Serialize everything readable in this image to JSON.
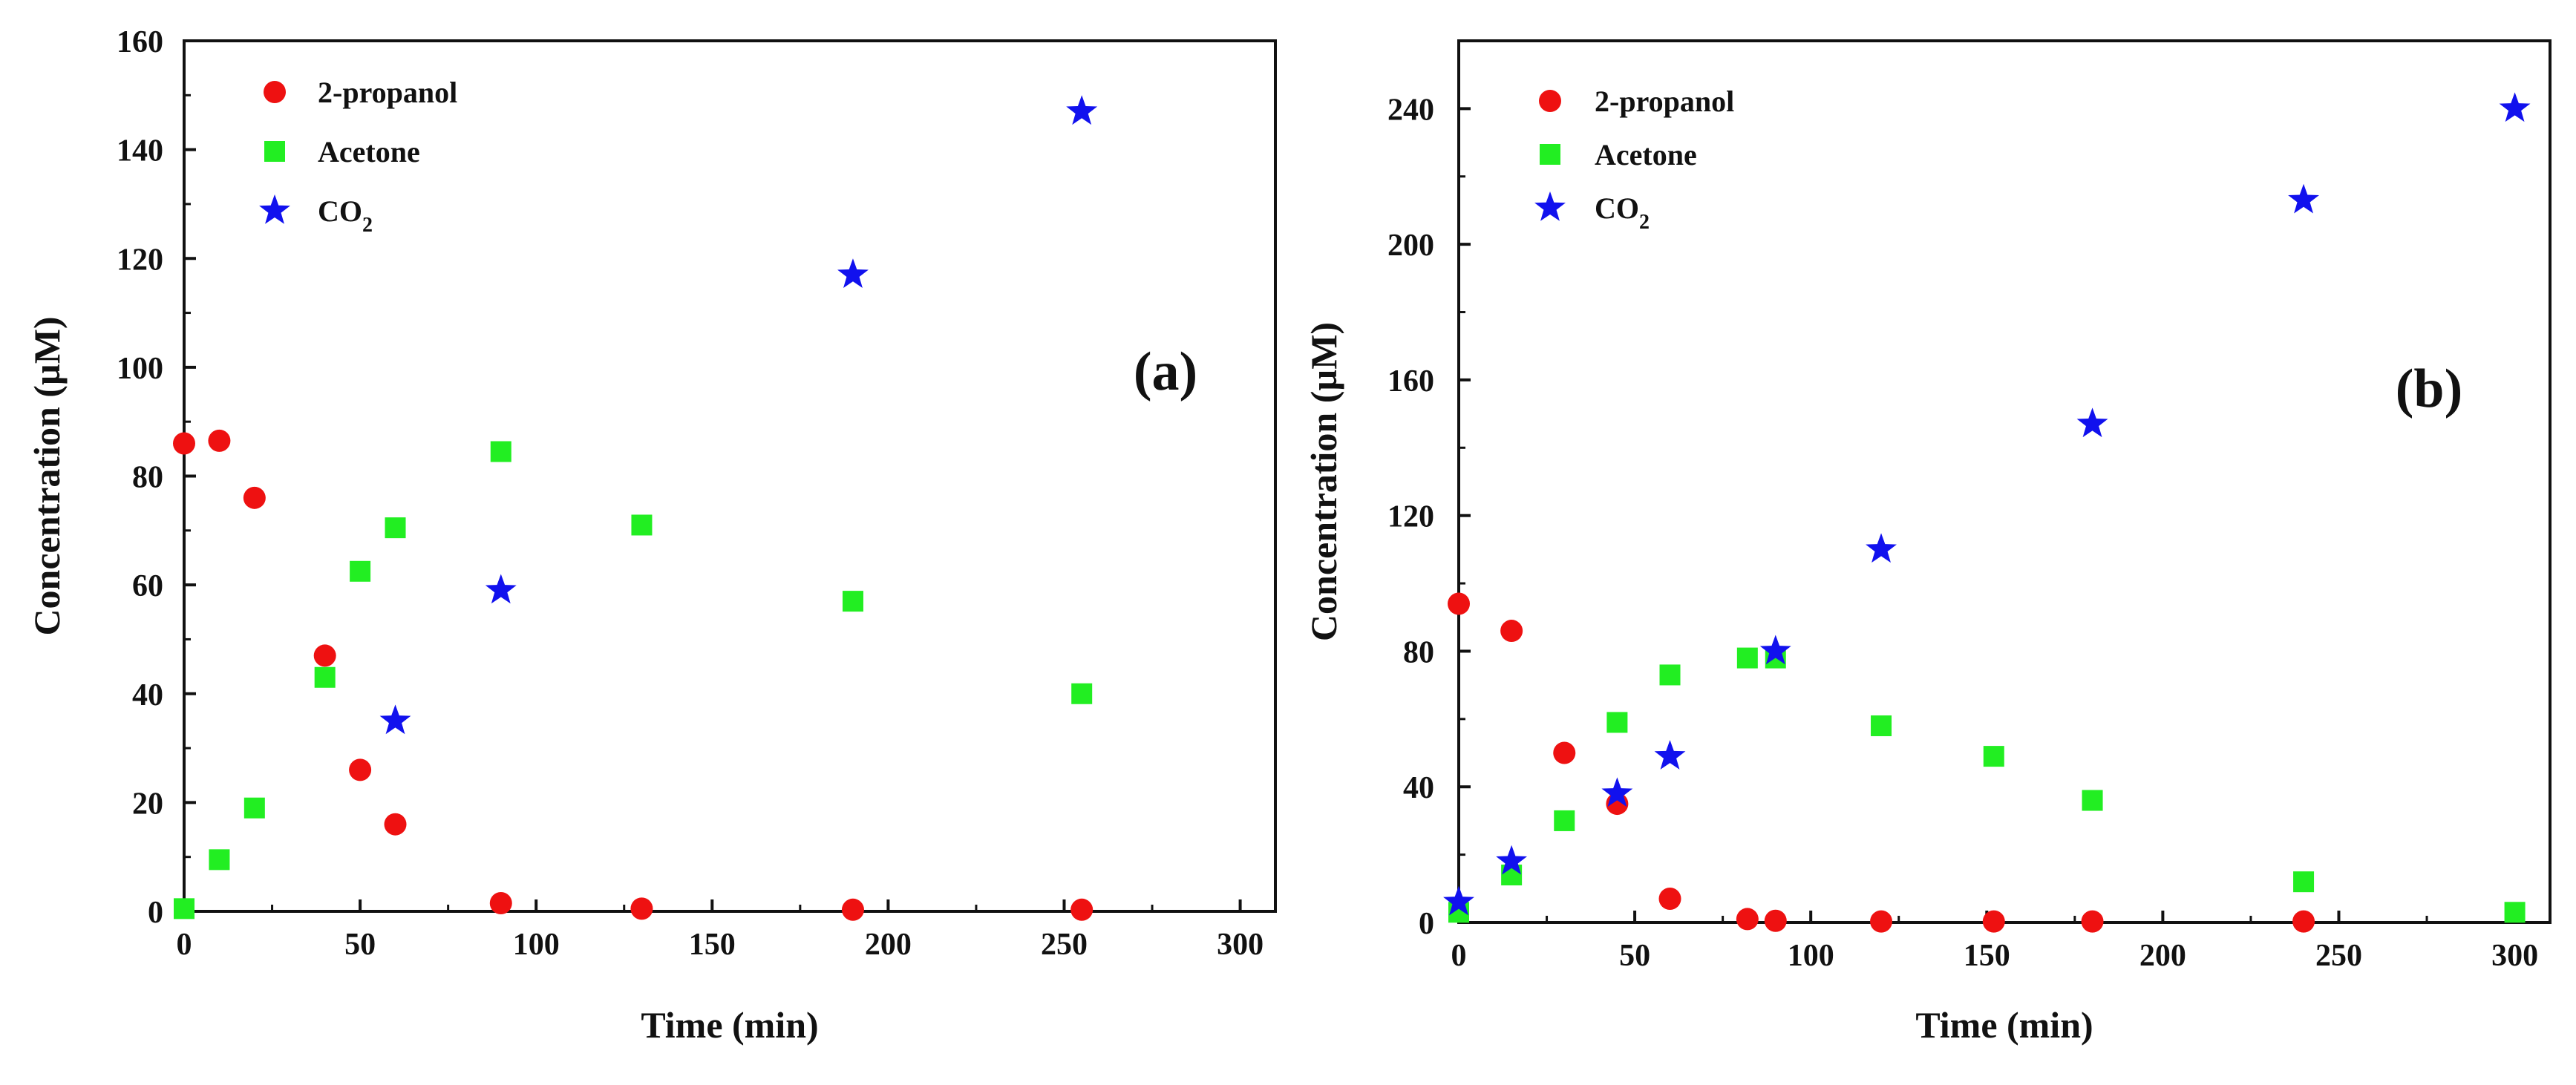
{
  "figure": {
    "colors": {
      "propanol": "#ee1111",
      "acetone": "#22ee22",
      "co2": "#1111ee",
      "axis": "#111111"
    }
  },
  "chart_data": [
    {
      "type": "scatter",
      "panel_label": "(a)",
      "xlabel": "Time (min)",
      "ylabel": "Concentration (µM)",
      "xlim": [
        0,
        310
      ],
      "ylim": [
        0,
        160
      ],
      "xticks": [
        0,
        50,
        100,
        150,
        200,
        250,
        300
      ],
      "yticks": [
        0,
        20,
        40,
        60,
        80,
        100,
        120,
        140,
        160
      ],
      "xtick_labels": [
        "0",
        "50",
        "100",
        "150",
        "200",
        "250",
        "300"
      ],
      "ytick_labels": [
        "0",
        "20",
        "40",
        "60",
        "80",
        "100",
        "120",
        "140",
        "160"
      ],
      "legend": [
        {
          "label": "2-propanol",
          "marker": "circle",
          "series": "propanol"
        },
        {
          "label": "Acetone",
          "marker": "square",
          "series": "acetone"
        },
        {
          "label": "CO",
          "sub": "2",
          "marker": "star",
          "series": "co2"
        }
      ],
      "legend_position": "top-left",
      "series": [
        {
          "key": "propanol",
          "name": "2-propanol",
          "marker": "circle",
          "x": [
            0,
            10,
            20,
            40,
            50,
            60,
            90,
            130,
            190,
            255
          ],
          "y": [
            86,
            86.5,
            76,
            47,
            26,
            16,
            1.5,
            0.5,
            0.3,
            0.3
          ]
        },
        {
          "key": "acetone",
          "name": "Acetone",
          "marker": "square",
          "x": [
            0,
            10,
            20,
            40,
            50,
            60,
            90,
            130,
            190,
            255
          ],
          "y": [
            0.5,
            9.5,
            19,
            43,
            62.5,
            70.5,
            84.5,
            71,
            57,
            40
          ]
        },
        {
          "key": "co2",
          "name": "CO2",
          "marker": "star",
          "x": [
            60,
            90,
            190,
            255
          ],
          "y": [
            35,
            59,
            117,
            147
          ]
        }
      ]
    },
    {
      "type": "scatter",
      "panel_label": "(b)",
      "xlabel": "Time (min)",
      "ylabel": "Concentration (µM)",
      "xlim": [
        0,
        310
      ],
      "ylim": [
        0,
        260
      ],
      "xticks": [
        0,
        50,
        100,
        150,
        200,
        250,
        300
      ],
      "yticks": [
        0,
        40,
        80,
        120,
        160,
        200,
        240
      ],
      "xtick_labels": [
        "0",
        "50",
        "100",
        "150",
        "200",
        "250",
        "300"
      ],
      "ytick_labels": [
        "0",
        "40",
        "80",
        "120",
        "160",
        "200",
        "240"
      ],
      "legend": [
        {
          "label": "2-propanol",
          "marker": "circle",
          "series": "propanol"
        },
        {
          "label": "Acetone",
          "marker": "square",
          "series": "acetone"
        },
        {
          "label": "CO",
          "sub": "2",
          "marker": "star",
          "series": "co2"
        }
      ],
      "legend_position": "top-left",
      "series": [
        {
          "key": "propanol",
          "name": "2-propanol",
          "marker": "circle",
          "x": [
            0,
            15,
            30,
            45,
            60,
            82,
            90,
            120,
            152,
            180,
            240
          ],
          "y": [
            94,
            86,
            50,
            35,
            7,
            1,
            0.5,
            0.3,
            0.3,
            0.3,
            0.3
          ]
        },
        {
          "key": "acetone",
          "name": "Acetone",
          "marker": "square",
          "x": [
            0,
            15,
            30,
            45,
            60,
            82,
            90,
            120,
            152,
            180,
            240,
            300
          ],
          "y": [
            3,
            14,
            30,
            59,
            73,
            78,
            78,
            58,
            49,
            36,
            12,
            3
          ]
        },
        {
          "key": "co2",
          "name": "CO2",
          "marker": "star",
          "x": [
            0,
            15,
            45,
            60,
            90,
            120,
            180,
            240,
            300
          ],
          "y": [
            6,
            18,
            38,
            49,
            80,
            110,
            147,
            213,
            240
          ]
        }
      ]
    }
  ]
}
